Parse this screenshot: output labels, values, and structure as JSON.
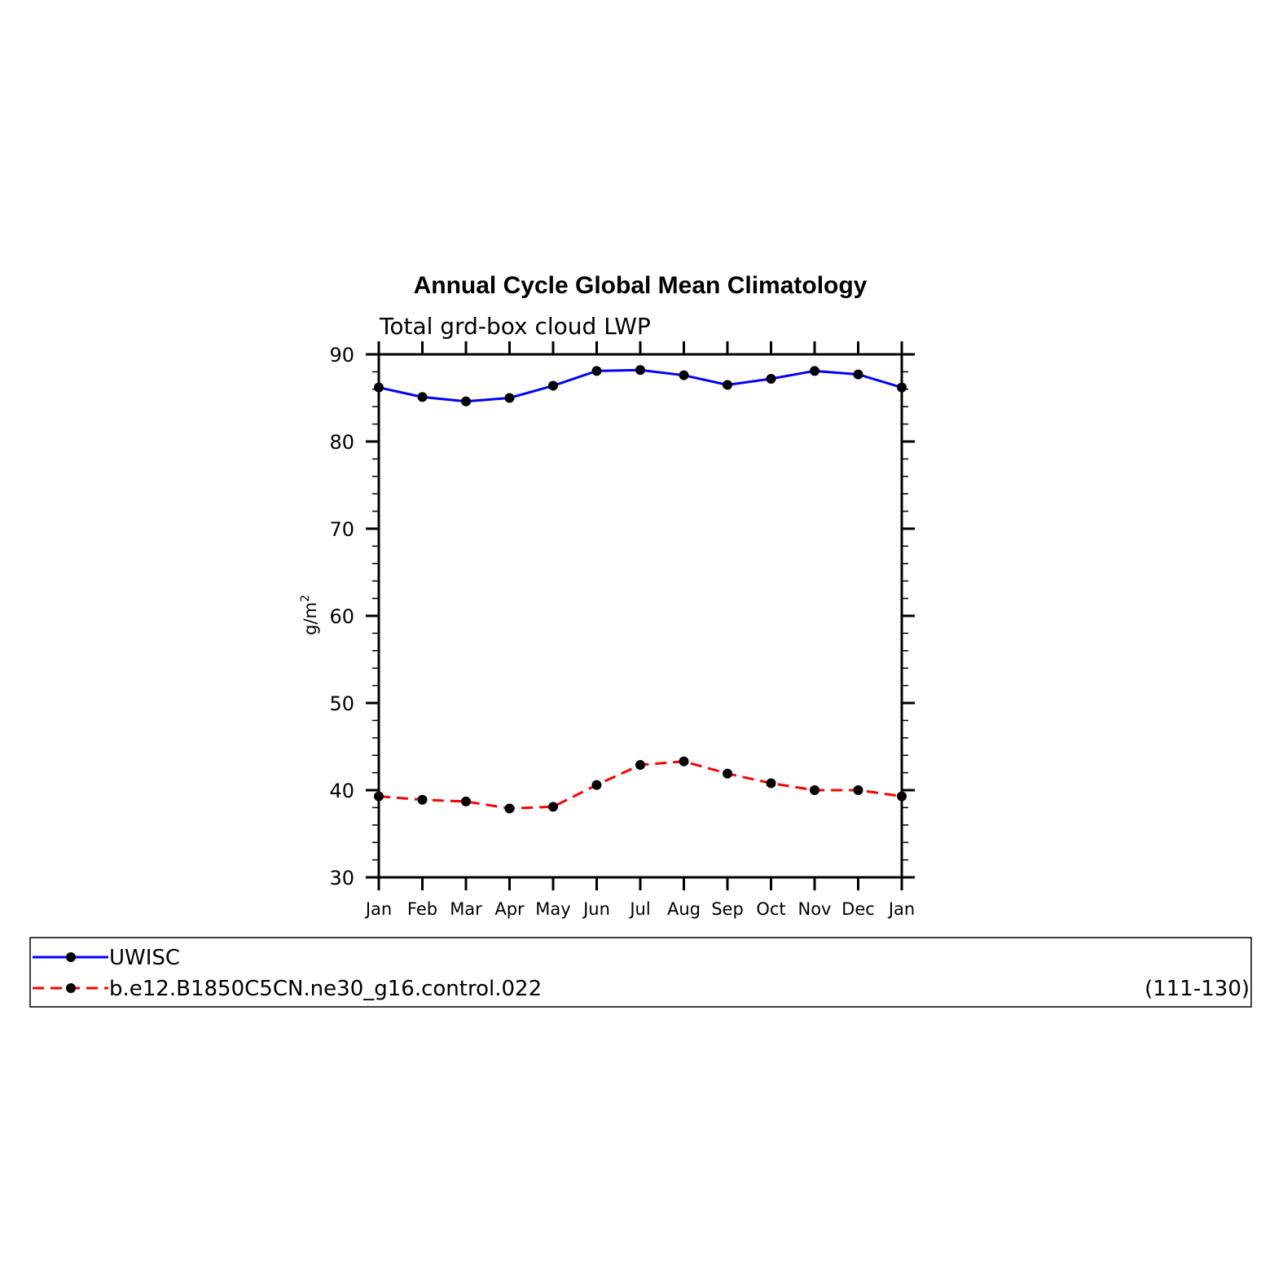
{
  "chart_data": {
    "type": "line",
    "title": "Annual Cycle Global Mean Climatology",
    "subtitle": "Total grd-box cloud LWP",
    "ylabel": "g/m",
    "ylabel_superscript": "2",
    "xlabel": "",
    "ylim": [
      30,
      90
    ],
    "yticks": [
      30,
      40,
      50,
      60,
      70,
      80,
      90
    ],
    "y_minor_step": 2,
    "categories": [
      "Jan",
      "Feb",
      "Mar",
      "Apr",
      "May",
      "Jun",
      "Jul",
      "Aug",
      "Sep",
      "Oct",
      "Nov",
      "Dec",
      "Jan"
    ],
    "series": [
      {
        "name": "UWISC",
        "color": "#0000ff",
        "dash": "solid",
        "marker": "filled-circle",
        "values": [
          86.2,
          85.1,
          84.6,
          85.0,
          86.4,
          88.1,
          88.2,
          87.6,
          86.5,
          87.2,
          88.1,
          87.7,
          86.2
        ]
      },
      {
        "name": "b.e12.B1850C5CN.ne30_g16.control.022",
        "color": "#ff0000",
        "dash": "dashed",
        "marker": "filled-circle",
        "values": [
          39.3,
          38.9,
          38.7,
          37.9,
          38.1,
          40.6,
          42.9,
          43.3,
          41.9,
          40.8,
          40.0,
          40.0,
          39.3
        ]
      }
    ],
    "legend": {
      "placement": "below",
      "note": "(111-130)"
    },
    "grid": false
  }
}
